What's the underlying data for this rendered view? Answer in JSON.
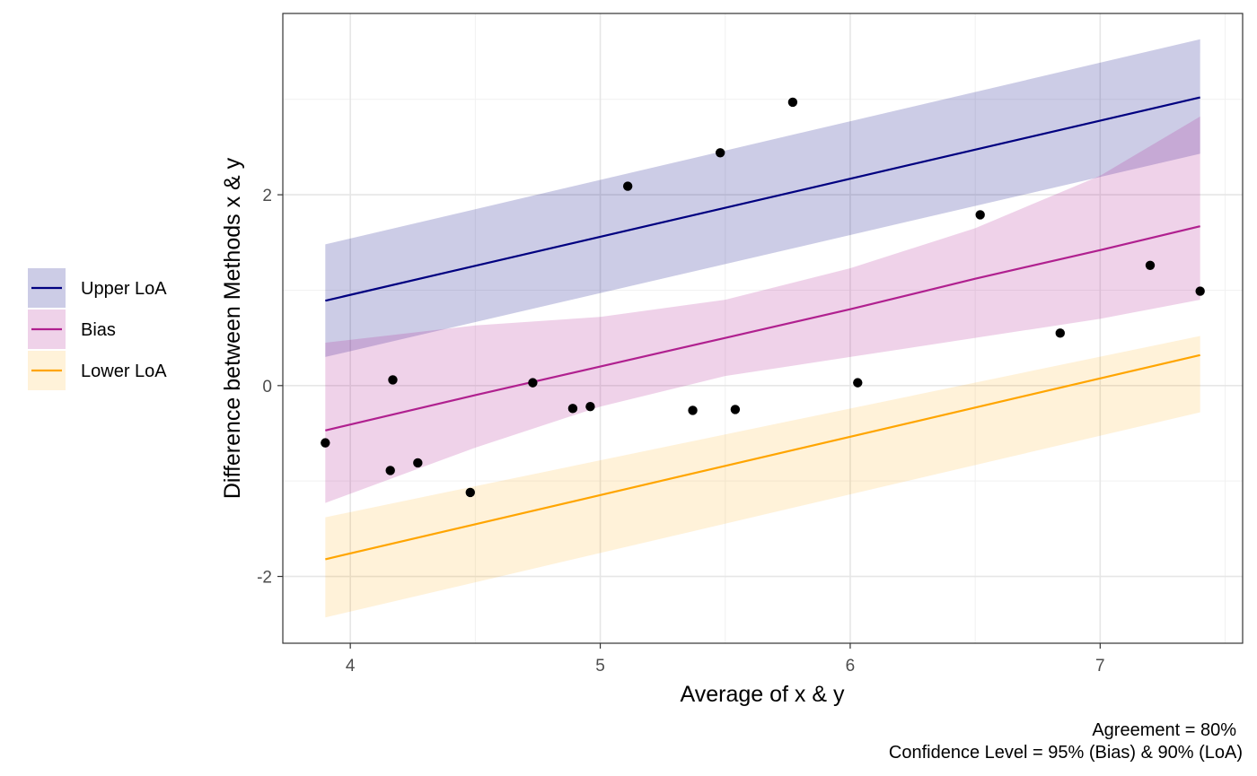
{
  "chart_data": {
    "type": "scatter",
    "xlabel": "Average of x & y",
    "ylabel": "Difference between Methods x & y",
    "xlim": [
      3.73,
      7.57
    ],
    "ylim": [
      -2.7,
      3.9
    ],
    "xticks": [
      4,
      5,
      6,
      7
    ],
    "yticks": [
      -2,
      0,
      2
    ],
    "grid": true,
    "legend_position": "left",
    "caption": [
      "Agreement = 80%",
      "Confidence Level = 95% (Bias) & 90% (LoA)"
    ],
    "points": {
      "x": [
        3.9,
        4.16,
        4.17,
        4.27,
        4.48,
        4.73,
        4.89,
        4.96,
        5.11,
        5.37,
        5.48,
        5.54,
        5.77,
        6.03,
        6.52,
        6.84,
        7.2,
        7.4
      ],
      "y": [
        -0.6,
        -0.89,
        0.06,
        -0.81,
        -1.12,
        0.03,
        -0.24,
        -0.22,
        2.09,
        -0.26,
        2.44,
        -0.25,
        2.97,
        0.03,
        1.79,
        0.55,
        1.26,
        0.99
      ]
    },
    "series": [
      {
        "name": "Upper LoA",
        "color": "#000080",
        "band_opacity": 0.2,
        "x": [
          3.9,
          7.4
        ],
        "line": [
          0.89,
          3.02
        ],
        "band_low": [
          0.3,
          2.43
        ],
        "band_high": [
          1.48,
          3.63
        ]
      },
      {
        "name": "Bias",
        "color": "#B0208F",
        "band_opacity": 0.2,
        "x": [
          3.9,
          4.5,
          5.0,
          5.5,
          6.0,
          6.5,
          7.0,
          7.4
        ],
        "line": [
          -0.47,
          -0.1,
          0.2,
          0.5,
          0.8,
          1.12,
          1.42,
          1.67
        ],
        "band_low": [
          -1.23,
          -0.65,
          -0.22,
          0.1,
          0.3,
          0.5,
          0.7,
          0.9
        ],
        "band_high": [
          0.45,
          0.63,
          0.72,
          0.9,
          1.23,
          1.65,
          2.2,
          2.82
        ]
      },
      {
        "name": "Lower LoA",
        "color": "#FFA500",
        "band_opacity": 0.15,
        "x": [
          3.9,
          7.4
        ],
        "line": [
          -1.82,
          0.32
        ],
        "band_low": [
          -2.43,
          -0.28
        ],
        "band_high": [
          -1.38,
          0.52
        ]
      }
    ]
  }
}
